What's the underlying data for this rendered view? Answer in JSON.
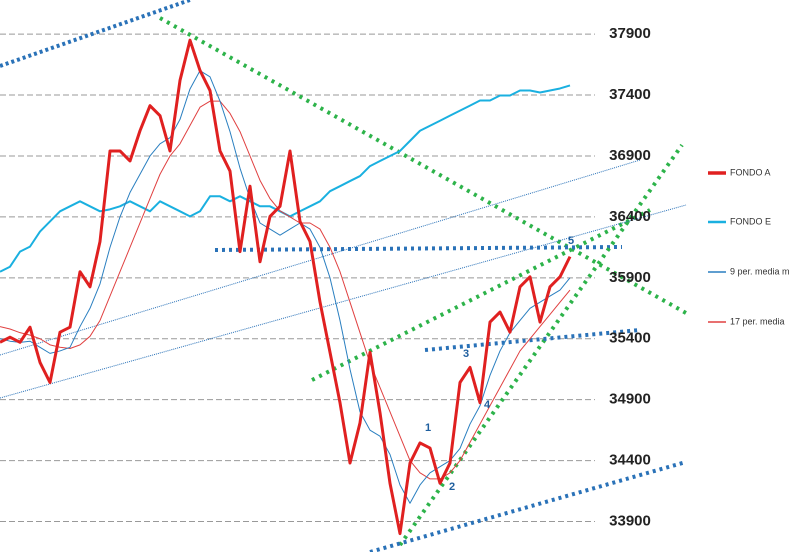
{
  "chart_data": {
    "type": "line",
    "x": [
      0,
      1,
      2,
      3,
      4,
      5,
      6,
      7,
      8,
      9,
      10,
      11,
      12,
      13,
      14,
      15,
      16,
      17,
      18,
      19,
      20,
      21,
      22,
      23,
      24,
      25,
      26,
      27,
      28,
      29,
      30,
      31,
      32,
      33,
      34,
      35,
      36,
      37,
      38,
      39,
      40,
      41,
      42,
      43,
      44,
      45,
      46,
      47,
      48,
      49,
      50,
      51,
      52,
      53,
      54,
      55,
      56,
      57
    ],
    "xlim": [
      0,
      59.5
    ],
    "ylim": [
      33650,
      38180
    ],
    "yticks": [
      33900,
      34400,
      34900,
      35400,
      35900,
      36400,
      36900,
      37400,
      37900
    ],
    "grid": true,
    "series": [
      {
        "name": "FONDO A",
        "color": "#e02020",
        "values": [
          35371,
          35413,
          35371,
          35495,
          35206,
          35041,
          35454,
          35495,
          35950,
          35826,
          36198,
          36941,
          36941,
          36859,
          37107,
          37313,
          37231,
          36941,
          37520,
          37850,
          37602,
          37437,
          36941,
          36776,
          36115,
          36652,
          36032,
          36404,
          36487,
          36941,
          36363,
          36198,
          35702,
          35289,
          34875,
          34380,
          34710,
          35289,
          34793,
          34214,
          33801,
          34380,
          34545,
          34503,
          34214,
          34380,
          35041,
          35165,
          34875,
          35537,
          35619,
          35454,
          35826,
          35908,
          35537,
          35826,
          35908,
          36074
        ]
      },
      {
        "name": "FONDO E",
        "color": "#1ab0e0",
        "values": [
          35950,
          35991,
          36115,
          36156,
          36280,
          36363,
          36446,
          36487,
          36528,
          36487,
          36446,
          36462,
          36487,
          36528,
          36487,
          36446,
          36528,
          36487,
          36446,
          36404,
          36446,
          36569,
          36569,
          36528,
          36569,
          36528,
          36487,
          36487,
          36446,
          36404,
          36446,
          36487,
          36528,
          36611,
          36652,
          36694,
          36735,
          36817,
          36859,
          36900,
          36941,
          37024,
          37107,
          37148,
          37189,
          37231,
          37272,
          37313,
          37355,
          37355,
          37396,
          37396,
          37437,
          37437,
          37421,
          37437,
          37454,
          37479
        ]
      },
      {
        "name": "9 per. media m",
        "color": "#2a7fc0",
        "values": [
          35400,
          35380,
          35370,
          35380,
          35330,
          35280,
          35300,
          35330,
          35500,
          35650,
          35850,
          36150,
          36400,
          36600,
          36750,
          36900,
          37000,
          37050,
          37200,
          37450,
          37600,
          37550,
          37350,
          37100,
          36800,
          36550,
          36350,
          36300,
          36250,
          36300,
          36350,
          36300,
          36150,
          35900,
          35550,
          35150,
          34800,
          34650,
          34600,
          34450,
          34200,
          34050,
          34200,
          34300,
          34350,
          34400,
          34500,
          34700,
          34850,
          35100,
          35300,
          35450,
          35550,
          35650,
          35700,
          35750,
          35800,
          35900
        ]
      },
      {
        "name": "17 per. media",
        "color": "#e04040",
        "values": [
          35500,
          35480,
          35450,
          35430,
          35400,
          35350,
          35330,
          35320,
          35350,
          35420,
          35550,
          35750,
          35950,
          36150,
          36350,
          36550,
          36750,
          36900,
          37000,
          37150,
          37300,
          37350,
          37350,
          37250,
          37100,
          36900,
          36700,
          36550,
          36450,
          36400,
          36350,
          36350,
          36300,
          36150,
          35950,
          35700,
          35450,
          35200,
          35000,
          34800,
          34600,
          34400,
          34300,
          34250,
          34250,
          34300,
          34400,
          34550,
          34700,
          34850,
          35000,
          35150,
          35300,
          35400,
          35500,
          35600,
          35700,
          35800
        ]
      }
    ],
    "annotations": [
      "1",
      "2",
      "3",
      "4",
      "5"
    ]
  }
}
